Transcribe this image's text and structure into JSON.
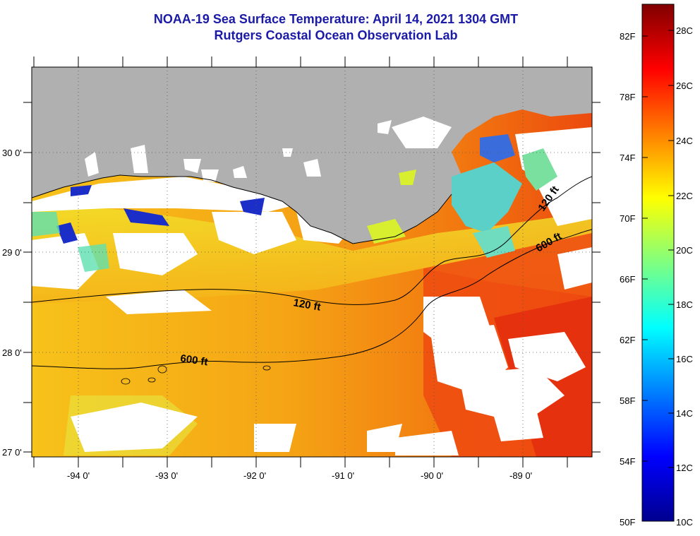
{
  "header": {
    "title": "NOAA-19 Sea Surface Temperature:  April 14, 2021 1304 GMT",
    "subtitle": "Rutgers Coastal Ocean Observation Lab"
  },
  "map": {
    "lon_labels": [
      "-94 0'",
      "-93 0'",
      "-92 0'",
      "-91 0'",
      "-90 0'",
      "-89 0'"
    ],
    "lat_labels": [
      "30 0'",
      "29 0'",
      "28 0'",
      "27 0'"
    ],
    "contours": {
      "shallow_label": "120 ft",
      "deep_label": "600 ft"
    },
    "colors": {
      "land": "#b0b0b0",
      "cloud": "#ffffff"
    }
  },
  "colorbar": {
    "fahrenheit_labels": [
      "82F",
      "78F",
      "74F",
      "70F",
      "66F",
      "62F",
      "58F",
      "54F",
      "50F"
    ],
    "celsius_labels": [
      "28C",
      "26C",
      "24C",
      "22C",
      "20C",
      "18C",
      "16C",
      "14C",
      "12C",
      "10C"
    ],
    "colormap": "jet",
    "range_c": [
      10,
      29.5
    ]
  }
}
